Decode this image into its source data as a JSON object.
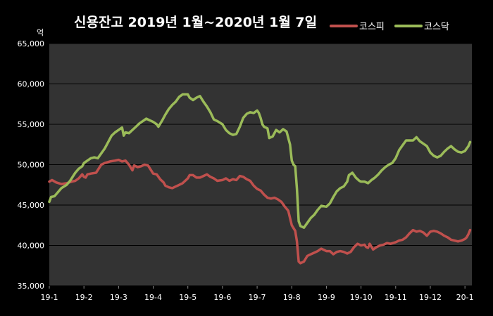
{
  "chart_data": {
    "type": "line",
    "title": "신용잔고  2019년 1월~2020년 1월 7일",
    "ylabel": "억",
    "xlabel": "",
    "ylim": [
      35000,
      65000
    ],
    "yticks": [
      35000,
      40000,
      45000,
      50000,
      55000,
      60000,
      65000
    ],
    "ytick_labels": [
      "35,000",
      "40,000",
      "45,000",
      "50,000",
      "55,000",
      "60,000",
      "65,000"
    ],
    "x_categories": [
      "19-1",
      "19-2",
      "19-3",
      "19-4",
      "19-5",
      "19-6",
      "19-7",
      "19-8",
      "19-9",
      "19-10",
      "19-11",
      "19-12",
      "20-1"
    ],
    "xlim": [
      0,
      12.2
    ],
    "grid": true,
    "legend_position": "top-right",
    "colors": {
      "background": "#000000",
      "plot": "#333333",
      "grid": "#000000",
      "kospi": "#C0504D",
      "kosdaq": "#9BBB59"
    },
    "series": [
      {
        "name": "코스피",
        "points": [
          [
            0.0,
            47900
          ],
          [
            0.08,
            48100
          ],
          [
            0.2,
            47800
          ],
          [
            0.35,
            47600
          ],
          [
            0.5,
            47700
          ],
          [
            0.65,
            47900
          ],
          [
            0.75,
            48000
          ],
          [
            0.85,
            48300
          ],
          [
            0.95,
            48800
          ],
          [
            1.0,
            48500
          ],
          [
            1.05,
            48400
          ],
          [
            1.1,
            48800
          ],
          [
            1.2,
            48900
          ],
          [
            1.35,
            49000
          ],
          [
            1.5,
            50000
          ],
          [
            1.6,
            50200
          ],
          [
            1.75,
            50400
          ],
          [
            1.9,
            50500
          ],
          [
            2.0,
            50600
          ],
          [
            2.1,
            50400
          ],
          [
            2.2,
            50500
          ],
          [
            2.3,
            50000
          ],
          [
            2.4,
            49300
          ],
          [
            2.45,
            49900
          ],
          [
            2.55,
            49700
          ],
          [
            2.65,
            49800
          ],
          [
            2.75,
            50000
          ],
          [
            2.85,
            49900
          ],
          [
            3.0,
            48900
          ],
          [
            3.1,
            48800
          ],
          [
            3.2,
            48200
          ],
          [
            3.3,
            47800
          ],
          [
            3.35,
            47400
          ],
          [
            3.45,
            47200
          ],
          [
            3.55,
            47100
          ],
          [
            3.65,
            47300
          ],
          [
            3.75,
            47500
          ],
          [
            3.85,
            47700
          ],
          [
            4.0,
            48300
          ],
          [
            4.05,
            48700
          ],
          [
            4.15,
            48700
          ],
          [
            4.25,
            48400
          ],
          [
            4.35,
            48400
          ],
          [
            4.45,
            48600
          ],
          [
            4.55,
            48800
          ],
          [
            4.65,
            48500
          ],
          [
            4.75,
            48300
          ],
          [
            4.85,
            48000
          ],
          [
            5.0,
            48100
          ],
          [
            5.1,
            48300
          ],
          [
            5.2,
            48000
          ],
          [
            5.3,
            48200
          ],
          [
            5.4,
            48100
          ],
          [
            5.5,
            48600
          ],
          [
            5.6,
            48500
          ],
          [
            5.7,
            48200
          ],
          [
            5.8,
            48000
          ],
          [
            5.9,
            47400
          ],
          [
            6.0,
            47000
          ],
          [
            6.1,
            46800
          ],
          [
            6.2,
            46300
          ],
          [
            6.3,
            45900
          ],
          [
            6.4,
            45800
          ],
          [
            6.5,
            45900
          ],
          [
            6.6,
            45700
          ],
          [
            6.7,
            45400
          ],
          [
            6.8,
            44800
          ],
          [
            6.9,
            44300
          ],
          [
            7.0,
            42500
          ],
          [
            7.1,
            41800
          ],
          [
            7.15,
            40500
          ],
          [
            7.2,
            38000
          ],
          [
            7.25,
            37800
          ],
          [
            7.35,
            38000
          ],
          [
            7.45,
            38700
          ],
          [
            7.55,
            38900
          ],
          [
            7.65,
            39100
          ],
          [
            7.75,
            39300
          ],
          [
            7.85,
            39600
          ],
          [
            8.0,
            39300
          ],
          [
            8.1,
            39300
          ],
          [
            8.2,
            38900
          ],
          [
            8.3,
            39200
          ],
          [
            8.4,
            39300
          ],
          [
            8.5,
            39200
          ],
          [
            8.6,
            39000
          ],
          [
            8.7,
            39200
          ],
          [
            8.8,
            39800
          ],
          [
            8.9,
            40200
          ],
          [
            9.0,
            40000
          ],
          [
            9.1,
            40100
          ],
          [
            9.15,
            39800
          ],
          [
            9.2,
            39700
          ],
          [
            9.25,
            40200
          ],
          [
            9.35,
            39500
          ],
          [
            9.45,
            39800
          ],
          [
            9.55,
            40000
          ],
          [
            9.65,
            40100
          ],
          [
            9.75,
            40300
          ],
          [
            9.85,
            40200
          ],
          [
            10.0,
            40400
          ],
          [
            10.1,
            40600
          ],
          [
            10.2,
            40700
          ],
          [
            10.3,
            41000
          ],
          [
            10.4,
            41500
          ],
          [
            10.5,
            41900
          ],
          [
            10.6,
            41700
          ],
          [
            10.7,
            41800
          ],
          [
            10.8,
            41600
          ],
          [
            10.9,
            41200
          ],
          [
            11.0,
            41700
          ],
          [
            11.1,
            41800
          ],
          [
            11.2,
            41700
          ],
          [
            11.3,
            41500
          ],
          [
            11.4,
            41200
          ],
          [
            11.5,
            41000
          ],
          [
            11.6,
            40700
          ],
          [
            11.7,
            40600
          ],
          [
            11.8,
            40500
          ],
          [
            11.9,
            40600
          ],
          [
            12.0,
            40800
          ],
          [
            12.05,
            41000
          ],
          [
            12.1,
            41400
          ],
          [
            12.15,
            41900
          ]
        ]
      },
      {
        "name": "코스닥",
        "points": [
          [
            0.0,
            45400
          ],
          [
            0.05,
            46000
          ],
          [
            0.15,
            46100
          ],
          [
            0.25,
            46600
          ],
          [
            0.35,
            47100
          ],
          [
            0.5,
            47500
          ],
          [
            0.6,
            48000
          ],
          [
            0.75,
            49000
          ],
          [
            0.85,
            49500
          ],
          [
            0.95,
            49800
          ],
          [
            1.0,
            50200
          ],
          [
            1.1,
            50500
          ],
          [
            1.2,
            50800
          ],
          [
            1.3,
            50900
          ],
          [
            1.4,
            50800
          ],
          [
            1.5,
            51400
          ],
          [
            1.6,
            52000
          ],
          [
            1.7,
            52800
          ],
          [
            1.8,
            53600
          ],
          [
            1.9,
            54000
          ],
          [
            2.0,
            54300
          ],
          [
            2.1,
            54600
          ],
          [
            2.15,
            53600
          ],
          [
            2.2,
            54000
          ],
          [
            2.3,
            53900
          ],
          [
            2.4,
            54300
          ],
          [
            2.5,
            54700
          ],
          [
            2.6,
            55100
          ],
          [
            2.7,
            55400
          ],
          [
            2.8,
            55700
          ],
          [
            2.9,
            55500
          ],
          [
            3.0,
            55300
          ],
          [
            3.1,
            55000
          ],
          [
            3.15,
            54700
          ],
          [
            3.25,
            55400
          ],
          [
            3.35,
            56200
          ],
          [
            3.45,
            56900
          ],
          [
            3.55,
            57400
          ],
          [
            3.65,
            57800
          ],
          [
            3.75,
            58400
          ],
          [
            3.85,
            58700
          ],
          [
            4.0,
            58700
          ],
          [
            4.05,
            58300
          ],
          [
            4.15,
            58000
          ],
          [
            4.25,
            58300
          ],
          [
            4.35,
            58500
          ],
          [
            4.45,
            57800
          ],
          [
            4.55,
            57200
          ],
          [
            4.65,
            56500
          ],
          [
            4.75,
            55600
          ],
          [
            4.85,
            55400
          ],
          [
            5.0,
            55000
          ],
          [
            5.1,
            54300
          ],
          [
            5.2,
            53900
          ],
          [
            5.3,
            53700
          ],
          [
            5.4,
            53800
          ],
          [
            5.5,
            54700
          ],
          [
            5.6,
            55800
          ],
          [
            5.7,
            56300
          ],
          [
            5.8,
            56500
          ],
          [
            5.9,
            56400
          ],
          [
            6.0,
            56700
          ],
          [
            6.05,
            56400
          ],
          [
            6.1,
            55800
          ],
          [
            6.15,
            55000
          ],
          [
            6.2,
            54700
          ],
          [
            6.3,
            54500
          ],
          [
            6.35,
            53300
          ],
          [
            6.45,
            53500
          ],
          [
            6.55,
            54300
          ],
          [
            6.65,
            54000
          ],
          [
            6.75,
            54400
          ],
          [
            6.85,
            54100
          ],
          [
            6.95,
            52500
          ],
          [
            7.0,
            50500
          ],
          [
            7.05,
            50000
          ],
          [
            7.1,
            49800
          ],
          [
            7.15,
            47000
          ],
          [
            7.2,
            43000
          ],
          [
            7.25,
            42400
          ],
          [
            7.35,
            42200
          ],
          [
            7.45,
            42800
          ],
          [
            7.55,
            43400
          ],
          [
            7.65,
            43800
          ],
          [
            7.75,
            44400
          ],
          [
            7.85,
            44900
          ],
          [
            8.0,
            44800
          ],
          [
            8.1,
            45200
          ],
          [
            8.2,
            46000
          ],
          [
            8.3,
            46700
          ],
          [
            8.4,
            47100
          ],
          [
            8.5,
            47300
          ],
          [
            8.6,
            47900
          ],
          [
            8.65,
            48700
          ],
          [
            8.75,
            49000
          ],
          [
            8.85,
            48400
          ],
          [
            8.95,
            48000
          ],
          [
            9.0,
            47900
          ],
          [
            9.1,
            47900
          ],
          [
            9.2,
            47700
          ],
          [
            9.3,
            48100
          ],
          [
            9.4,
            48400
          ],
          [
            9.5,
            48800
          ],
          [
            9.6,
            49300
          ],
          [
            9.7,
            49700
          ],
          [
            9.8,
            50000
          ],
          [
            9.9,
            50200
          ],
          [
            10.0,
            50800
          ],
          [
            10.1,
            51800
          ],
          [
            10.2,
            52400
          ],
          [
            10.3,
            53000
          ],
          [
            10.4,
            53000
          ],
          [
            10.5,
            53000
          ],
          [
            10.6,
            53400
          ],
          [
            10.7,
            52900
          ],
          [
            10.8,
            52600
          ],
          [
            10.9,
            52300
          ],
          [
            11.0,
            51500
          ],
          [
            11.1,
            51100
          ],
          [
            11.2,
            50900
          ],
          [
            11.3,
            51100
          ],
          [
            11.4,
            51600
          ],
          [
            11.5,
            52000
          ],
          [
            11.6,
            52300
          ],
          [
            11.7,
            51900
          ],
          [
            11.8,
            51600
          ],
          [
            11.9,
            51500
          ],
          [
            12.0,
            51700
          ],
          [
            12.05,
            52000
          ],
          [
            12.1,
            52300
          ],
          [
            12.15,
            52800
          ]
        ]
      }
    ]
  }
}
